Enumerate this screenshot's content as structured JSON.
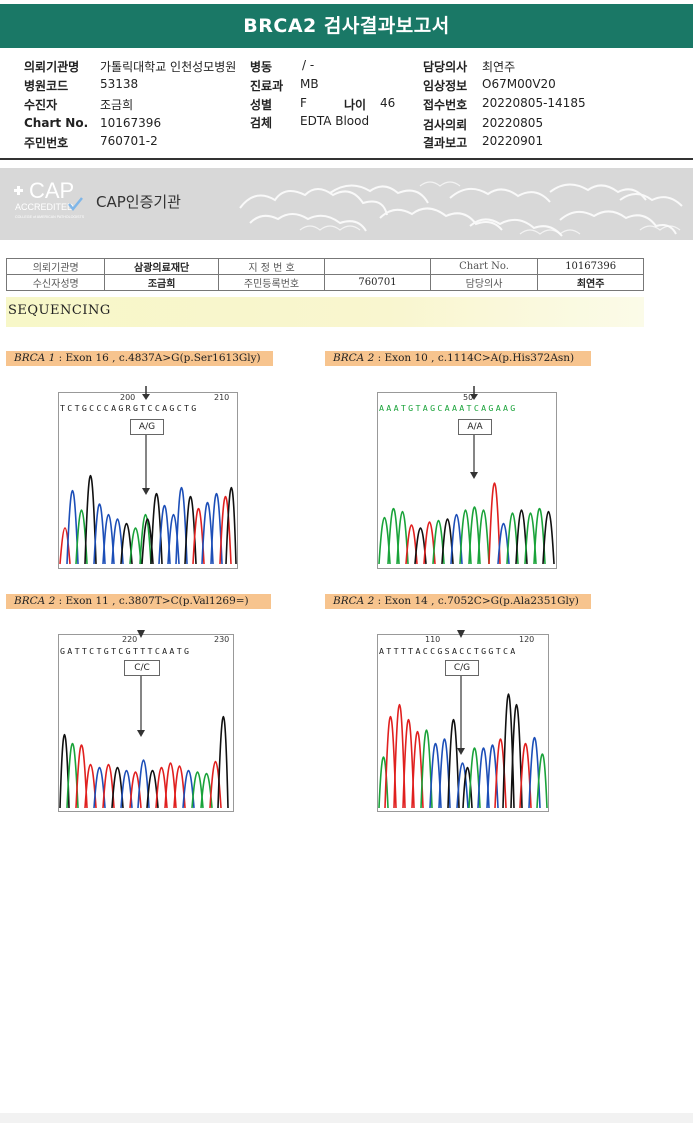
{
  "report": {
    "title": "BRCA2 검사결과보고서"
  },
  "header": {
    "institution_label": "의뢰기관명",
    "institution_value": "가톨릭대학교 인천성모병원",
    "ward_label": "병동",
    "ward_value": "/ -",
    "physician_label": "담당의사",
    "physician_value": "최연주",
    "hospital_code_label": "병원코드",
    "hospital_code_value": "53138",
    "dept_label": "진료과",
    "dept_value": "MB",
    "clinical_label": "임상정보",
    "clinical_value": "O67M00V20",
    "patient_label": "수진자",
    "patient_value": "조금희",
    "sex_label": "성별",
    "sex_value": "F",
    "age_label": "나이",
    "age_value": "46",
    "receipt_label": "접수번호",
    "receipt_value": "20220805-14185",
    "chart_label": "Chart No.",
    "chart_value": "10167396",
    "specimen_label": "검체",
    "specimen_value": "EDTA Blood",
    "request_label": "검사의뢰",
    "request_value": "20220805",
    "rrn_label": "주민번호",
    "rrn_value": "760701-2",
    "report_label": "결과보고",
    "report_value": "20220901"
  },
  "cap": {
    "logo_text": "CAP",
    "accredited": "ACCREDITED",
    "college": "COLLEGE of AMERICAN PATHOLOGISTS",
    "agency": "CAP인증기관"
  },
  "info_table": {
    "org_label": "의뢰기관명",
    "org_value": "삼광의료재단",
    "code_label": "지 정 번 호",
    "code_value": "",
    "chart_label": "Chart No.",
    "chart_value": "10167396",
    "name_label": "수신자성명",
    "name_value": "조금희",
    "rrn_label": "주민등록번호",
    "rrn_value": "760701",
    "doctor_label": "담당의사",
    "doctor_value": "최연주"
  },
  "section": {
    "title": "SEQUENCING"
  },
  "variants": [
    {
      "gene": "BRCA 1",
      "detail": " : Exon 16 , c.4837A>G(p.Ser1613Gly)",
      "seq": "TCTGCCCAGRGTCCAGCTG",
      "pos_left": "200",
      "pos_right": "210",
      "call": "A/G"
    },
    {
      "gene": "BRCA 2",
      "detail": " : Exon 10 , c.1114C>A(p.His372Asn)",
      "seq": "AAATGTAGCAAATCAGAAG",
      "pos_left": "50",
      "pos_right": "",
      "call": "A/A"
    },
    {
      "gene": "BRCA 2",
      "detail": " : Exon 11 , c.3807T>C(p.Val1269=)",
      "seq": "GATTCTGTCGTTTCAATG",
      "pos_left": "220",
      "pos_right": "230",
      "call": "C/C"
    },
    {
      "gene": "BRCA 2",
      "detail": " : Exon 14 , c.7052C>G(p.Ala2351Gly)",
      "seq": "ATTTTACCGSACCTGGTCA",
      "pos_left": "110",
      "pos_right": "120",
      "call": "C/G"
    }
  ],
  "colors": {
    "title_bar": "#1a7866",
    "label_bg": "#f7c48e",
    "trace_A": "#1aa33a",
    "trace_C": "#1d4fb8",
    "trace_G": "#111111",
    "trace_T": "#e0201f"
  }
}
